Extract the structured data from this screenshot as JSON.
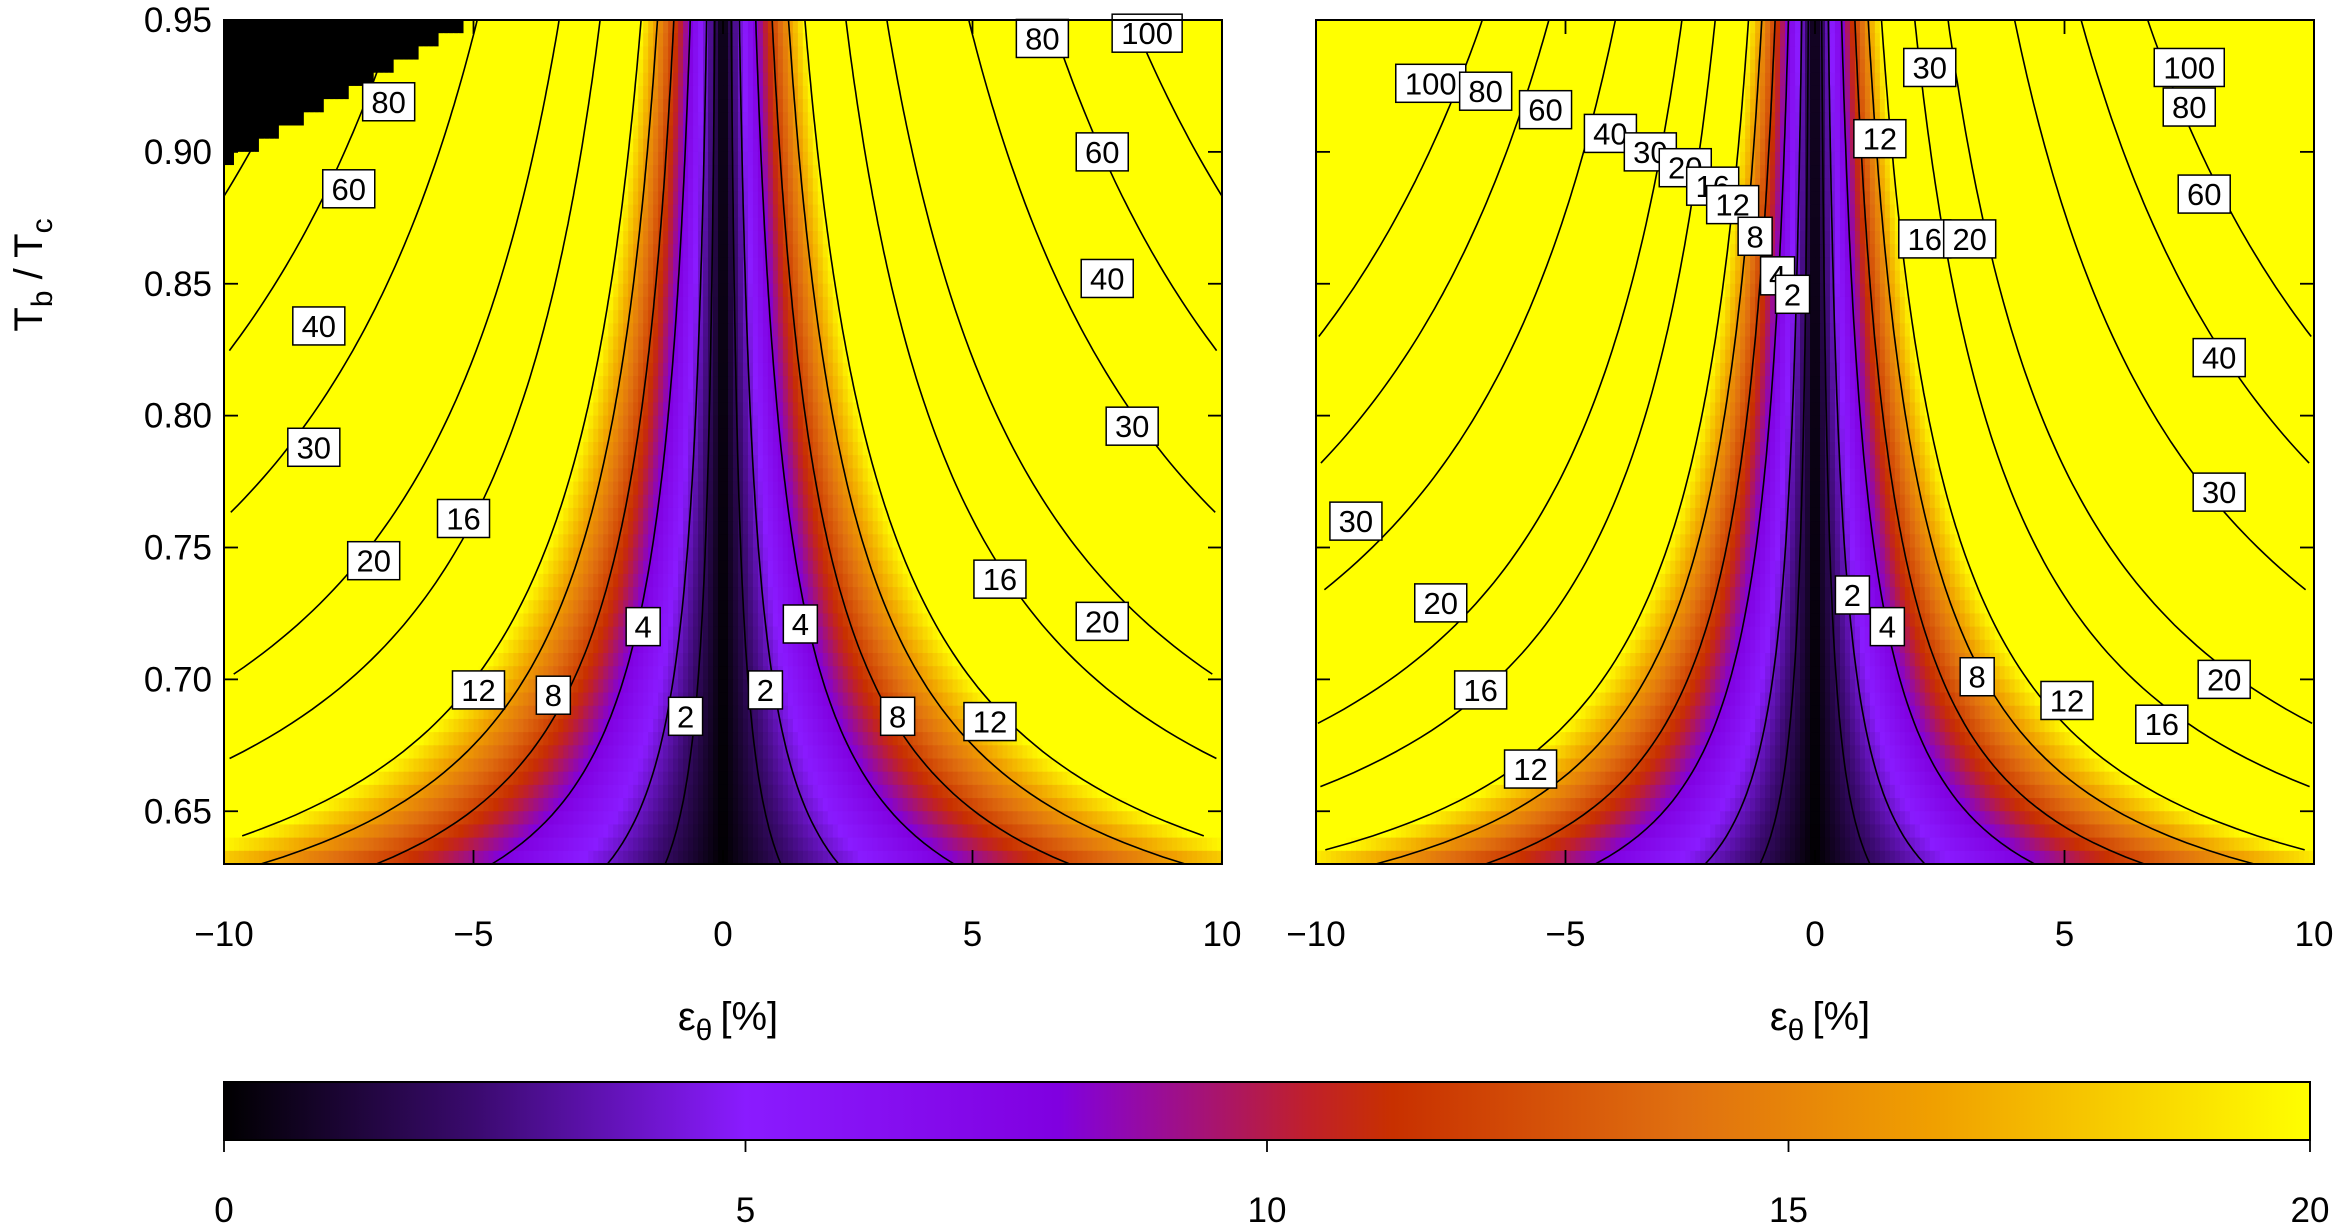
{
  "chart_data": [
    {
      "type": "heatmap",
      "panel": "left",
      "xlabel": "ε",
      "xlabel_subscript": "θ",
      "xlabel_unit": "[%]",
      "ylabel": "T",
      "ylabel_sub_b": "b",
      "ylabel_sep": " / T",
      "ylabel_sub_c": "c",
      "xlim": [
        -10,
        10
      ],
      "ylim": [
        0.63,
        0.95
      ],
      "x_ticks": [
        -10,
        -5,
        0,
        5,
        10
      ],
      "x_tick_labels": [
        "−10",
        "−5",
        "0",
        "5",
        "10"
      ],
      "y_ticks": [
        0.65,
        0.7,
        0.75,
        0.8,
        0.85,
        0.9,
        0.95
      ],
      "y_tick_labels": [
        "0.65",
        "0.70",
        "0.75",
        "0.80",
        "0.85",
        "0.90",
        "0.95"
      ],
      "color_range": [
        0,
        20
      ],
      "overflow_region": "black triangle at top-left (x < -8, T above ~0.90)",
      "contour_levels": [
        2,
        4,
        8,
        12,
        16,
        20,
        30,
        40,
        60,
        80,
        100
      ],
      "contour_labels": [
        {
          "text": "80",
          "x": -6.7,
          "y": 0.919
        },
        {
          "text": "60",
          "x": -7.5,
          "y": 0.886
        },
        {
          "text": "40",
          "x": -8.1,
          "y": 0.834
        },
        {
          "text": "30",
          "x": -8.2,
          "y": 0.788
        },
        {
          "text": "20",
          "x": -7.0,
          "y": 0.745
        },
        {
          "text": "16",
          "x": -5.2,
          "y": 0.761
        },
        {
          "text": "12",
          "x": -4.9,
          "y": 0.696
        },
        {
          "text": "8",
          "x": -3.4,
          "y": 0.694
        },
        {
          "text": "4",
          "x": -1.6,
          "y": 0.72
        },
        {
          "text": "2",
          "x": -0.75,
          "y": 0.686
        },
        {
          "text": "2",
          "x": 0.85,
          "y": 0.696
        },
        {
          "text": "4",
          "x": 1.55,
          "y": 0.721
        },
        {
          "text": "8",
          "x": 3.5,
          "y": 0.686
        },
        {
          "text": "12",
          "x": 5.35,
          "y": 0.684
        },
        {
          "text": "16",
          "x": 5.55,
          "y": 0.738
        },
        {
          "text": "20",
          "x": 7.6,
          "y": 0.722
        },
        {
          "text": "30",
          "x": 8.2,
          "y": 0.796
        },
        {
          "text": "40",
          "x": 7.7,
          "y": 0.852
        },
        {
          "text": "60",
          "x": 7.6,
          "y": 0.9
        },
        {
          "text": "80",
          "x": 6.4,
          "y": 0.943
        },
        {
          "text": "100",
          "x": 8.5,
          "y": 0.945
        }
      ]
    },
    {
      "type": "heatmap",
      "panel": "right",
      "xlabel": "ε",
      "xlabel_subscript": "θ",
      "xlabel_unit": "[%]",
      "xlim": [
        -10,
        10
      ],
      "ylim": [
        0.63,
        0.95
      ],
      "x_ticks": [
        -10,
        -5,
        0,
        5,
        10
      ],
      "x_tick_labels": [
        "−10",
        "−5",
        "0",
        "5",
        "10"
      ],
      "y_ticks": [
        0.65,
        0.7,
        0.75,
        0.8,
        0.85,
        0.9,
        0.95
      ],
      "color_range": [
        0,
        20
      ],
      "contour_levels": [
        2,
        4,
        8,
        12,
        16,
        20,
        30,
        40,
        60,
        80,
        100
      ],
      "contour_labels": [
        {
          "text": "100",
          "x": -7.7,
          "y": 0.926
        },
        {
          "text": "80",
          "x": -6.6,
          "y": 0.923
        },
        {
          "text": "60",
          "x": -5.4,
          "y": 0.916
        },
        {
          "text": "40",
          "x": -4.1,
          "y": 0.907
        },
        {
          "text": "30",
          "x": -3.3,
          "y": 0.9
        },
        {
          "text": "20",
          "x": -2.6,
          "y": 0.894
        },
        {
          "text": "16",
          "x": -2.05,
          "y": 0.887
        },
        {
          "text": "12",
          "x": -1.65,
          "y": 0.88
        },
        {
          "text": "8",
          "x": -1.2,
          "y": 0.868
        },
        {
          "text": "4",
          "x": -0.75,
          "y": 0.853
        },
        {
          "text": "2",
          "x": -0.45,
          "y": 0.846
        },
        {
          "text": "30",
          "x": 2.3,
          "y": 0.932
        },
        {
          "text": "12",
          "x": 1.3,
          "y": 0.905
        },
        {
          "text": "16",
          "x": 2.2,
          "y": 0.867
        },
        {
          "text": "20",
          "x": 3.1,
          "y": 0.867
        },
        {
          "text": "100",
          "x": 7.5,
          "y": 0.932
        },
        {
          "text": "80",
          "x": 7.5,
          "y": 0.917
        },
        {
          "text": "60",
          "x": 7.8,
          "y": 0.884
        },
        {
          "text": "40",
          "x": 8.1,
          "y": 0.822
        },
        {
          "text": "30",
          "x": 8.1,
          "y": 0.771
        },
        {
          "text": "20",
          "x": -7.5,
          "y": 0.729
        },
        {
          "text": "16",
          "x": -6.7,
          "y": 0.696
        },
        {
          "text": "12",
          "x": -5.7,
          "y": 0.666
        },
        {
          "text": "30",
          "x": -9.2,
          "y": 0.76
        },
        {
          "text": "2",
          "x": 0.75,
          "y": 0.732
        },
        {
          "text": "4",
          "x": 1.45,
          "y": 0.72
        },
        {
          "text": "8",
          "x": 3.25,
          "y": 0.701
        },
        {
          "text": "12",
          "x": 5.05,
          "y": 0.692
        },
        {
          "text": "16",
          "x": 6.95,
          "y": 0.683
        },
        {
          "text": "20",
          "x": 8.2,
          "y": 0.7
        }
      ]
    },
    {
      "type": "colorbar",
      "range": [
        0,
        20
      ],
      "ticks": [
        0,
        5,
        10,
        15,
        20
      ],
      "tick_labels": [
        "0",
        "5",
        "10",
        "15",
        "20"
      ],
      "colormap": [
        "#000000",
        "#3a0a6e",
        "#8a1bff",
        "#8000e0",
        "#c0202a",
        "#c83000",
        "#e07010",
        "#f0a000",
        "#ffff00"
      ]
    }
  ]
}
